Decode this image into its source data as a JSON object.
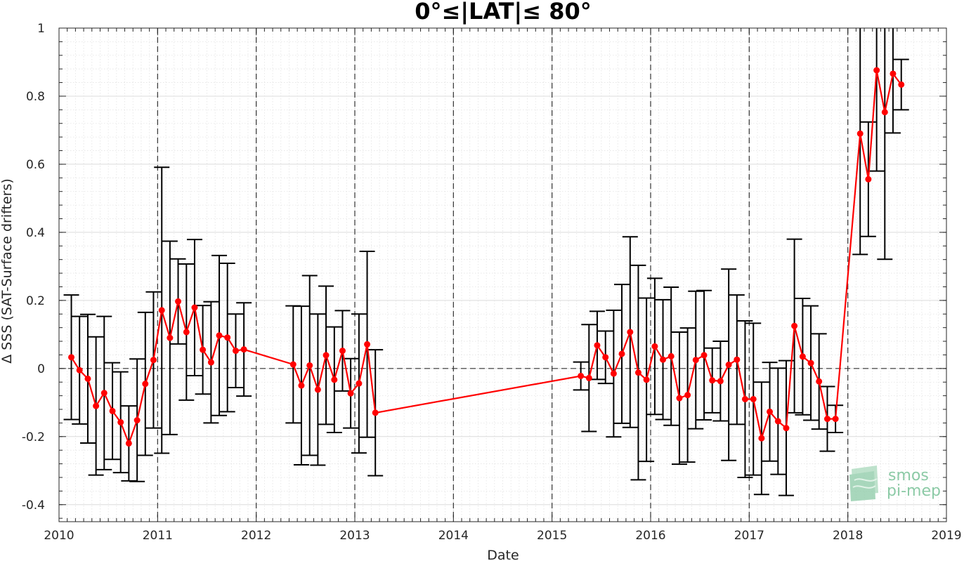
{
  "chart_data": {
    "type": "line",
    "title": "0°≤|LAT|≤ 80°",
    "xlabel": "Date",
    "ylabel": "Δ SSS (SAT-Surface drifters)",
    "xlim": [
      2010,
      2019
    ],
    "ylim": [
      -0.45,
      1.0
    ],
    "x_ticks": [
      "2010",
      "2011",
      "2012",
      "2013",
      "2014",
      "2015",
      "2016",
      "2017",
      "2018",
      "2019"
    ],
    "y_ticks": [
      "-0.4",
      "-0.2",
      "0",
      "0.2",
      "0.4",
      "0.6",
      "0.8",
      "1"
    ],
    "grid": "minor dotted",
    "vertical_dashed_lines_at_years": [
      2011,
      2012,
      2013,
      2014,
      2015,
      2016,
      2017,
      2018
    ],
    "horizontal_dashed_line_at": 0,
    "series": [
      {
        "color": "#ff0000",
        "errorbar_color": "#000000",
        "points": [
          {
            "x": 2010.125,
            "y": 0.033,
            "err": 0.183
          },
          {
            "x": 2010.208,
            "y": -0.005,
            "err": 0.158
          },
          {
            "x": 2010.292,
            "y": -0.03,
            "err": 0.189
          },
          {
            "x": 2010.375,
            "y": -0.11,
            "err": 0.203
          },
          {
            "x": 2010.458,
            "y": -0.072,
            "err": 0.225
          },
          {
            "x": 2010.542,
            "y": -0.125,
            "err": 0.142
          },
          {
            "x": 2010.625,
            "y": -0.158,
            "err": 0.148
          },
          {
            "x": 2010.708,
            "y": -0.22,
            "err": 0.11
          },
          {
            "x": 2010.792,
            "y": -0.152,
            "err": 0.18
          },
          {
            "x": 2010.875,
            "y": -0.045,
            "err": 0.21
          },
          {
            "x": 2010.958,
            "y": 0.025,
            "err": 0.2
          },
          {
            "x": 2011.042,
            "y": 0.171,
            "err": 0.42
          },
          {
            "x": 2011.125,
            "y": 0.09,
            "err": 0.284
          },
          {
            "x": 2011.208,
            "y": 0.197,
            "err": 0.125
          },
          {
            "x": 2011.292,
            "y": 0.107,
            "err": 0.2
          },
          {
            "x": 2011.375,
            "y": 0.179,
            "err": 0.2
          },
          {
            "x": 2011.458,
            "y": 0.055,
            "err": 0.13
          },
          {
            "x": 2011.542,
            "y": 0.018,
            "err": 0.178
          },
          {
            "x": 2011.625,
            "y": 0.097,
            "err": 0.235
          },
          {
            "x": 2011.708,
            "y": 0.091,
            "err": 0.218
          },
          {
            "x": 2011.792,
            "y": 0.052,
            "err": 0.108
          },
          {
            "x": 2011.875,
            "y": 0.056,
            "err": 0.137
          },
          {
            "x": 2012.375,
            "y": 0.012,
            "err": 0.172
          },
          {
            "x": 2012.458,
            "y": -0.05,
            "err": 0.233
          },
          {
            "x": 2012.542,
            "y": 0.009,
            "err": 0.264
          },
          {
            "x": 2012.625,
            "y": -0.062,
            "err": 0.222
          },
          {
            "x": 2012.708,
            "y": 0.039,
            "err": 0.203
          },
          {
            "x": 2012.792,
            "y": -0.033,
            "err": 0.155
          },
          {
            "x": 2012.875,
            "y": 0.052,
            "err": 0.118
          },
          {
            "x": 2012.958,
            "y": -0.073,
            "err": 0.102
          },
          {
            "x": 2013.042,
            "y": -0.044,
            "err": 0.204
          },
          {
            "x": 2013.125,
            "y": 0.071,
            "err": 0.273
          },
          {
            "x": 2013.208,
            "y": -0.13,
            "err": 0.185
          },
          {
            "x": 2015.292,
            "y": -0.022,
            "err": 0.041
          },
          {
            "x": 2015.375,
            "y": -0.028,
            "err": 0.157
          },
          {
            "x": 2015.458,
            "y": 0.068,
            "err": 0.1
          },
          {
            "x": 2015.542,
            "y": 0.033,
            "err": 0.077
          },
          {
            "x": 2015.625,
            "y": -0.015,
            "err": 0.186
          },
          {
            "x": 2015.708,
            "y": 0.043,
            "err": 0.204
          },
          {
            "x": 2015.792,
            "y": 0.107,
            "err": 0.28
          },
          {
            "x": 2015.875,
            "y": -0.012,
            "err": 0.315
          },
          {
            "x": 2015.958,
            "y": -0.033,
            "err": 0.24
          },
          {
            "x": 2016.042,
            "y": 0.065,
            "err": 0.2
          },
          {
            "x": 2016.125,
            "y": 0.026,
            "err": 0.176
          },
          {
            "x": 2016.208,
            "y": 0.036,
            "err": 0.203
          },
          {
            "x": 2016.292,
            "y": -0.087,
            "err": 0.194
          },
          {
            "x": 2016.375,
            "y": -0.078,
            "err": 0.197
          },
          {
            "x": 2016.458,
            "y": 0.025,
            "err": 0.202
          },
          {
            "x": 2016.542,
            "y": 0.039,
            "err": 0.19
          },
          {
            "x": 2016.625,
            "y": -0.035,
            "err": 0.095
          },
          {
            "x": 2016.708,
            "y": -0.037,
            "err": 0.117
          },
          {
            "x": 2016.792,
            "y": 0.011,
            "err": 0.281
          },
          {
            "x": 2016.875,
            "y": 0.026,
            "err": 0.19
          },
          {
            "x": 2016.958,
            "y": -0.09,
            "err": 0.23
          },
          {
            "x": 2017.042,
            "y": -0.09,
            "err": 0.223
          },
          {
            "x": 2017.125,
            "y": -0.205,
            "err": 0.165
          },
          {
            "x": 2017.208,
            "y": -0.127,
            "err": 0.145
          },
          {
            "x": 2017.292,
            "y": -0.155,
            "err": 0.156
          },
          {
            "x": 2017.375,
            "y": -0.175,
            "err": 0.198
          },
          {
            "x": 2017.458,
            "y": 0.125,
            "err": 0.255
          },
          {
            "x": 2017.542,
            "y": 0.035,
            "err": 0.171
          },
          {
            "x": 2017.625,
            "y": 0.016,
            "err": 0.168
          },
          {
            "x": 2017.708,
            "y": -0.038,
            "err": 0.14
          },
          {
            "x": 2017.792,
            "y": -0.148,
            "err": 0.095
          },
          {
            "x": 2017.875,
            "y": -0.148,
            "err": 0.04
          },
          {
            "x": 2018.125,
            "y": 0.69,
            "err": 0.355
          },
          {
            "x": 2018.208,
            "y": 0.556,
            "err": 0.168
          },
          {
            "x": 2018.292,
            "y": 0.876,
            "err": 0.296
          },
          {
            "x": 2018.375,
            "y": 0.753,
            "err": 0.432
          },
          {
            "x": 2018.458,
            "y": 0.866,
            "err": 0.174
          },
          {
            "x": 2018.542,
            "y": 0.834,
            "err": 0.074
          }
        ]
      }
    ]
  },
  "logo": {
    "line1": "smos",
    "line2": "pi-mep",
    "color": "#8ccaa6"
  }
}
